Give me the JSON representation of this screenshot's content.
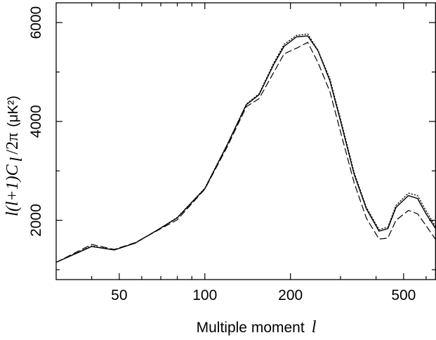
{
  "chart_data": {
    "type": "line",
    "title": "",
    "xlabel": {
      "text": "Multiple moment",
      "symbol": "l"
    },
    "ylabel": {
      "prefix": "l(l+1)C",
      "subscript": "l",
      "suffix": "/2π",
      "unit": "(μK²)"
    },
    "xscale": "log",
    "xlim": [
      30,
      650
    ],
    "ylim": [
      800,
      6400
    ],
    "xticks": [
      {
        "value": 50,
        "label": "50"
      },
      {
        "value": 100,
        "label": "100"
      },
      {
        "value": 200,
        "label": "200"
      },
      {
        "value": 500,
        "label": "500"
      }
    ],
    "xminor": [
      40,
      60,
      70,
      80,
      90,
      300,
      400,
      600
    ],
    "yticks": [
      {
        "value": 2000,
        "label": "2000"
      },
      {
        "value": 4000,
        "label": "4000"
      },
      {
        "value": 6000,
        "label": "6000"
      }
    ],
    "yminor": [
      1000,
      3000,
      5000
    ],
    "grid": false,
    "legend": "none",
    "series": [
      {
        "style": "solid",
        "color": "#000000",
        "x": [
          30,
          40,
          48,
          57,
          68,
          80,
          100,
          120,
          140,
          155,
          175,
          190,
          210,
          230,
          250,
          275,
          300,
          335,
          370,
          410,
          440,
          470,
          520,
          560,
          600,
          650
        ],
        "y": [
          1150,
          1470,
          1400,
          1540,
          1800,
          2050,
          2640,
          3530,
          4340,
          4540,
          5160,
          5520,
          5710,
          5730,
          5430,
          4830,
          4010,
          2930,
          2230,
          1780,
          1830,
          2260,
          2500,
          2440,
          2130,
          1820
        ]
      },
      {
        "style": "dotted",
        "color": "#000000",
        "x": [
          30,
          40,
          48,
          57,
          68,
          80,
          100,
          120,
          140,
          155,
          175,
          190,
          210,
          230,
          250,
          275,
          300,
          335,
          370,
          410,
          440,
          470,
          520,
          560,
          600,
          650
        ],
        "y": [
          1150,
          1480,
          1400,
          1540,
          1800,
          2060,
          2650,
          3540,
          4350,
          4560,
          5190,
          5560,
          5740,
          5770,
          5440,
          4870,
          4050,
          2970,
          2260,
          1810,
          1860,
          2300,
          2550,
          2500,
          2190,
          1860
        ]
      },
      {
        "style": "dashed",
        "color": "#000000",
        "x": [
          30,
          40,
          48,
          57,
          68,
          80,
          100,
          120,
          140,
          155,
          175,
          190,
          210,
          230,
          250,
          275,
          300,
          335,
          370,
          410,
          440,
          470,
          520,
          560,
          600,
          650
        ],
        "y": [
          1150,
          1510,
          1410,
          1550,
          1790,
          2010,
          2630,
          3490,
          4300,
          4460,
          5000,
          5370,
          5480,
          5600,
          5190,
          4610,
          3790,
          2760,
          2040,
          1620,
          1640,
          2000,
          2200,
          2130,
          1890,
          1600
        ]
      }
    ]
  }
}
